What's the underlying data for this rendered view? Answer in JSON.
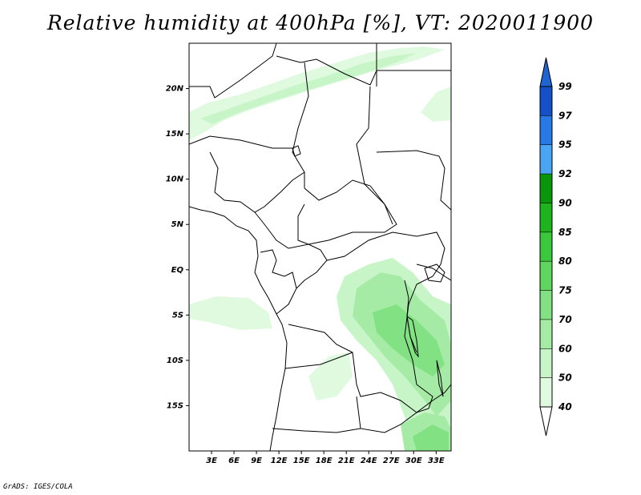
{
  "title": "Relative humidity at 400hPa [%], VT: 2020011900",
  "credit": "GrADS: IGES/COLA",
  "map": {
    "lon_range": [
      0,
      35
    ],
    "lat_range": [
      -20,
      25
    ],
    "lat_labels": [
      "20N",
      "15N",
      "10N",
      "5N",
      "EQ",
      "5S",
      "10S",
      "15S"
    ],
    "lat_values": [
      20,
      15,
      10,
      5,
      0,
      -5,
      -10,
      -15
    ],
    "lon_labels": [
      "3E",
      "6E",
      "9E",
      "12E",
      "15E",
      "18E",
      "21E",
      "24E",
      "27E",
      "30E",
      "33E"
    ],
    "lon_values": [
      3,
      6,
      9,
      12,
      15,
      18,
      21,
      24,
      27,
      30,
      33
    ]
  },
  "colorbar": {
    "levels": [
      "40",
      "50",
      "60",
      "70",
      "75",
      "80",
      "85",
      "90",
      "92",
      "95",
      "97",
      "99"
    ],
    "colors": [
      "#f0fff0",
      "#e0fae0",
      "#c8f5c8",
      "#a5eba5",
      "#82e182",
      "#5fd75f",
      "#3cc83c",
      "#1eb41e",
      "#0a960a",
      "#4aa5f5",
      "#2878e6",
      "#1450c8"
    ],
    "top_arrow_color": "#1e64d2",
    "bottom_arrow_color": "#ffffff"
  }
}
